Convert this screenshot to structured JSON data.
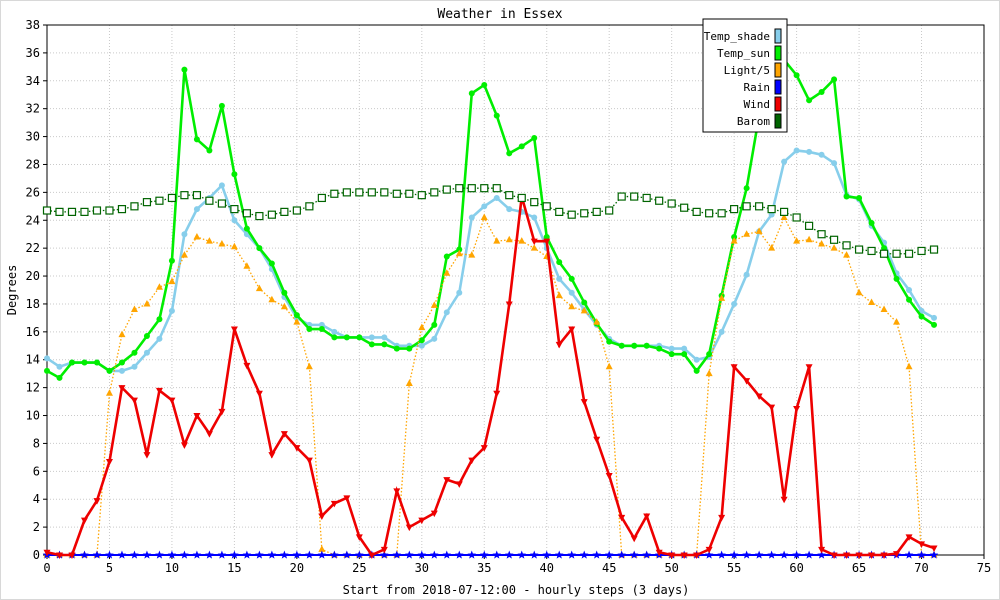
{
  "chart_data": {
    "type": "line",
    "title": "Weather in Essex",
    "xlabel": "Start from 2018-07-12:00 - hourly steps (3 days)",
    "ylabel": "Degrees",
    "xlim": [
      0,
      75
    ],
    "ylim": [
      0,
      38
    ],
    "x_ticks": [
      0,
      5,
      10,
      15,
      20,
      25,
      30,
      35,
      40,
      45,
      50,
      55,
      60,
      65,
      70,
      75
    ],
    "y_ticks": [
      0,
      2,
      4,
      6,
      8,
      10,
      12,
      14,
      16,
      18,
      20,
      22,
      24,
      26,
      28,
      30,
      32,
      34,
      36,
      38
    ],
    "grid": true,
    "legend_position": "top-right",
    "series": [
      {
        "name": "Temp_shade",
        "color": "#87ceeb",
        "marker": "circle",
        "line": "solid",
        "values": [
          14.1,
          13.5,
          13.8,
          13.8,
          13.8,
          13.2,
          13.2,
          13.5,
          14.5,
          15.5,
          17.5,
          23.0,
          24.8,
          25.6,
          26.5,
          24.0,
          23.0,
          22.0,
          20.5,
          18.5,
          17.0,
          16.5,
          16.5,
          16.0,
          15.6,
          15.6,
          15.6,
          15.6,
          15.0,
          15.0,
          15.0,
          15.5,
          17.4,
          18.8,
          24.2,
          25.0,
          25.6,
          24.8,
          24.6,
          24.2,
          22.0,
          19.8,
          18.8,
          17.6,
          16.5,
          15.5,
          15.0,
          15.0,
          15.0,
          15.0,
          14.8,
          14.8,
          14.0,
          14.2,
          16.0,
          18.0,
          20.1,
          23.2,
          24.4,
          28.2,
          29.0,
          28.9,
          28.7,
          28.1,
          25.8,
          25.5,
          23.6,
          22.4,
          20.2,
          19.0,
          17.5,
          17.0
        ]
      },
      {
        "name": "Temp_sun",
        "color": "#00ee00",
        "marker": "circle",
        "line": "solid",
        "values": [
          13.2,
          12.7,
          13.8,
          13.8,
          13.8,
          13.2,
          13.8,
          14.5,
          15.7,
          16.9,
          21.1,
          34.8,
          29.8,
          29.0,
          32.2,
          27.3,
          23.4,
          22.0,
          20.9,
          18.8,
          17.2,
          16.2,
          16.2,
          15.6,
          15.6,
          15.6,
          15.1,
          15.1,
          14.8,
          14.8,
          15.4,
          16.5,
          21.4,
          21.9,
          33.1,
          33.7,
          31.5,
          28.8,
          29.3,
          29.9,
          22.8,
          21.0,
          19.8,
          18.1,
          16.6,
          15.3,
          15.0,
          15.0,
          15.0,
          14.8,
          14.4,
          14.4,
          13.2,
          14.4,
          18.6,
          22.8,
          26.3,
          31.5,
          35.5,
          35.5,
          34.4,
          32.6,
          33.2,
          34.1,
          25.7,
          25.6,
          23.8,
          22.0,
          19.8,
          18.3,
          17.1,
          16.5
        ]
      },
      {
        "name": "Light/5",
        "color": "#ffa500",
        "marker": "triangle-up",
        "line": "dotted",
        "values": [
          0,
          0,
          0,
          0,
          0,
          11.6,
          15.8,
          17.6,
          18.0,
          19.2,
          19.6,
          21.5,
          22.8,
          22.5,
          22.3,
          22.1,
          20.7,
          19.1,
          18.3,
          17.8,
          16.7,
          13.5,
          0.4,
          0,
          0,
          0,
          0,
          0,
          0,
          12.3,
          16.3,
          17.9,
          20.2,
          21.6,
          21.5,
          24.2,
          22.5,
          22.6,
          22.5,
          22.0,
          21.4,
          18.6,
          17.8,
          17.5,
          16.7,
          13.5,
          0,
          0,
          0,
          0,
          0,
          0,
          0,
          13.0,
          18.4,
          22.5,
          23.0,
          23.2,
          22.0,
          24.2,
          22.5,
          22.6,
          22.3,
          22.0,
          21.5,
          18.8,
          18.1,
          17.6,
          16.7,
          13.5,
          0,
          0
        ]
      },
      {
        "name": "Rain",
        "color": "#0000ff",
        "marker": "star",
        "line": "solid",
        "values": [
          0,
          0,
          0,
          0,
          0,
          0,
          0,
          0,
          0,
          0,
          0,
          0,
          0,
          0,
          0,
          0,
          0,
          0,
          0,
          0,
          0,
          0,
          0,
          0,
          0,
          0,
          0,
          0,
          0,
          0,
          0,
          0,
          0,
          0,
          0,
          0,
          0,
          0,
          0,
          0,
          0,
          0,
          0,
          0,
          0,
          0,
          0,
          0,
          0,
          0,
          0,
          0,
          0,
          0,
          0,
          0,
          0,
          0,
          0,
          0,
          0,
          0,
          0,
          0,
          0,
          0,
          0,
          0,
          0,
          0,
          0,
          0
        ]
      },
      {
        "name": "Wind",
        "color": "#ee0000",
        "marker": "triangle-down",
        "line": "solid",
        "values": [
          0.2,
          0,
          0,
          2.5,
          3.9,
          6.7,
          12.0,
          11.1,
          7.2,
          11.8,
          11.1,
          7.9,
          10.0,
          8.7,
          10.3,
          16.2,
          13.6,
          11.6,
          7.2,
          8.7,
          7.7,
          6.8,
          2.8,
          3.7,
          4.1,
          1.3,
          0,
          0.4,
          4.6,
          2.0,
          2.5,
          3.0,
          5.4,
          5.1,
          6.8,
          7.7,
          11.6,
          18.0,
          25.7,
          22.5,
          22.5,
          15.1,
          16.2,
          11.0,
          8.3,
          5.7,
          2.7,
          1.2,
          2.8,
          0.2,
          0,
          0,
          0,
          0.4,
          2.7,
          13.5,
          12.5,
          11.4,
          10.6,
          4.0,
          10.5,
          13.5,
          0.4,
          0,
          0,
          0,
          0,
          0,
          0.1,
          1.3,
          0.8,
          0.5
        ]
      },
      {
        "name": "Barom",
        "color": "#006400",
        "marker": "square-open",
        "line": "dotted",
        "values": [
          24.7,
          24.6,
          24.6,
          24.6,
          24.7,
          24.7,
          24.8,
          25.0,
          25.3,
          25.4,
          25.6,
          25.8,
          25.8,
          25.4,
          25.2,
          24.8,
          24.5,
          24.3,
          24.4,
          24.6,
          24.7,
          25.0,
          25.6,
          25.9,
          26.0,
          26.0,
          26.0,
          26.0,
          25.9,
          25.9,
          25.8,
          26.0,
          26.2,
          26.3,
          26.3,
          26.3,
          26.3,
          25.8,
          25.6,
          25.3,
          25.0,
          24.6,
          24.4,
          24.5,
          24.6,
          24.7,
          25.7,
          25.7,
          25.6,
          25.4,
          25.2,
          24.9,
          24.6,
          24.5,
          24.5,
          24.8,
          25.0,
          25.0,
          24.8,
          24.6,
          24.2,
          23.6,
          23.0,
          22.6,
          22.2,
          21.9,
          21.8,
          21.6,
          21.6,
          21.6,
          21.8,
          21.9
        ]
      }
    ]
  }
}
